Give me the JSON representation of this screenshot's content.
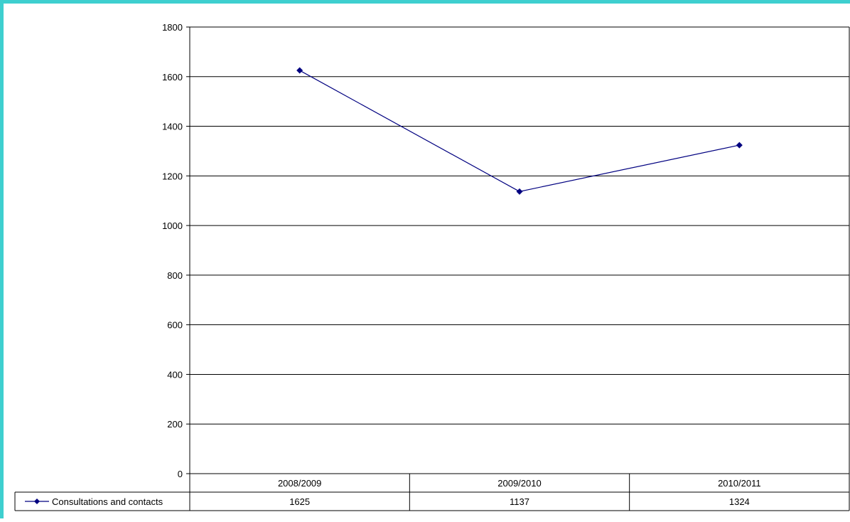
{
  "chart_data": {
    "type": "line",
    "categories": [
      "2008/2009",
      "2009/2010",
      "2010/2011"
    ],
    "series": [
      {
        "name": "Consultations and contacts",
        "values": [
          1625,
          1137,
          1324
        ]
      }
    ],
    "value_labels": [
      "1625",
      "1137",
      "1324"
    ],
    "yticks": [
      "0",
      "200",
      "400",
      "600",
      "800",
      "1000",
      "1200",
      "1400",
      "1600",
      "1800"
    ],
    "ylim": [
      0,
      1800
    ],
    "grid": true,
    "legend": "data table",
    "colors": {
      "line": "#000080",
      "frame": "#3ecfcf",
      "grid": "#000000"
    }
  }
}
